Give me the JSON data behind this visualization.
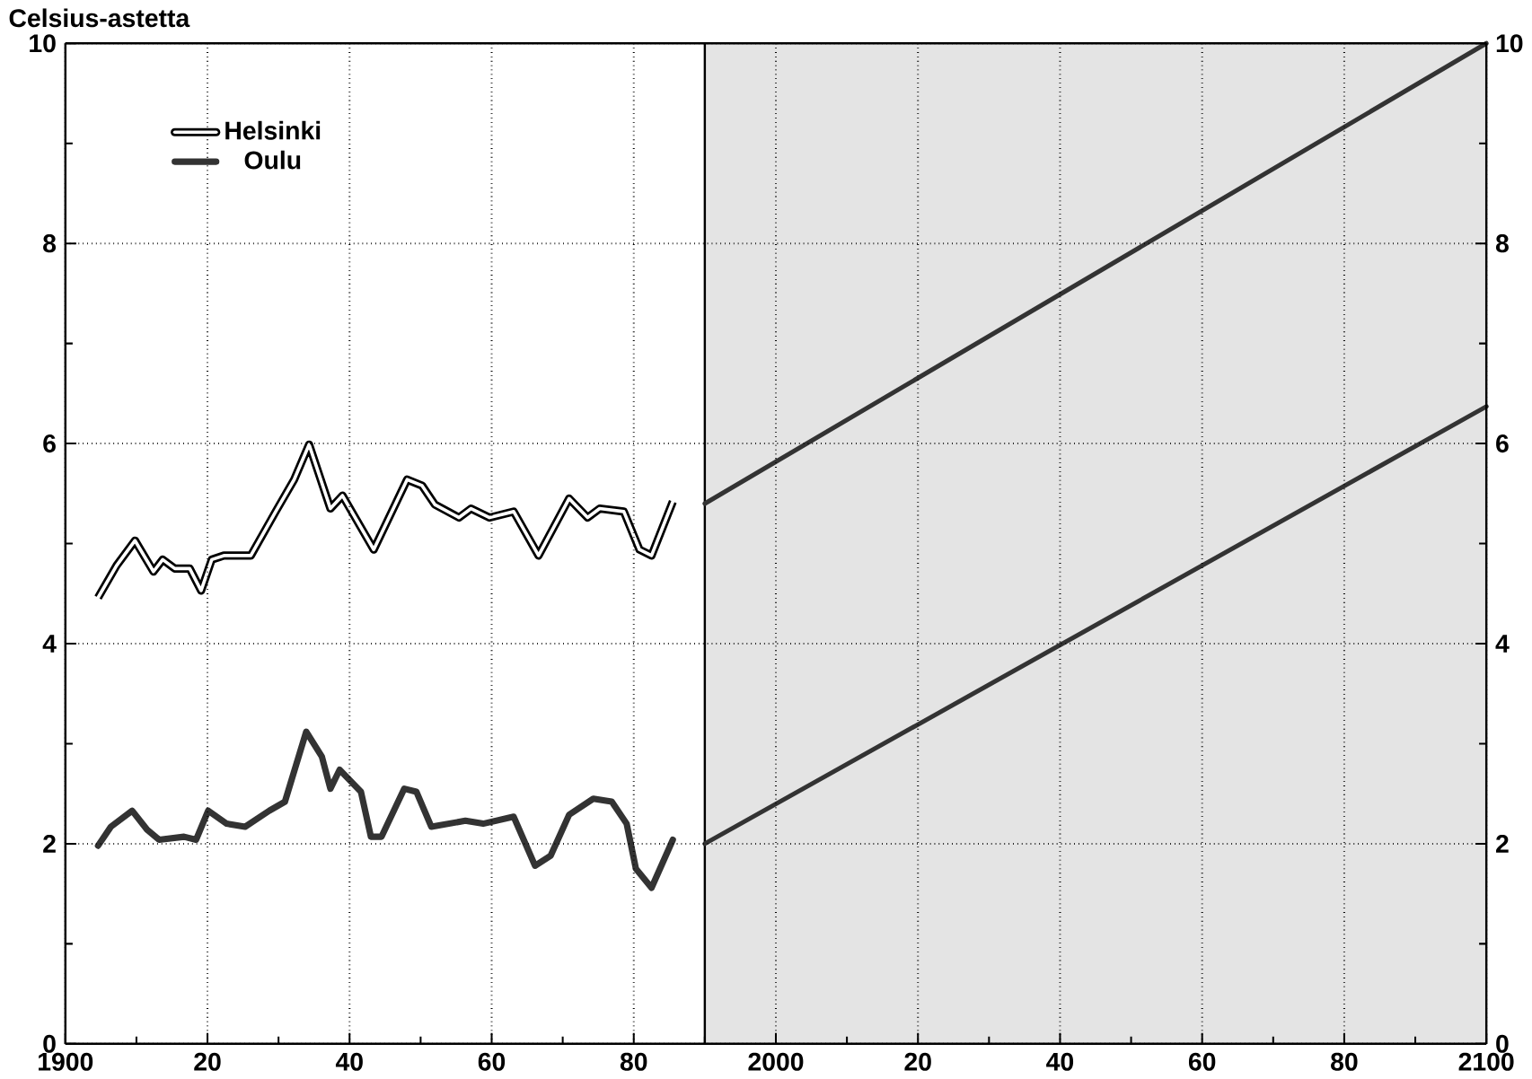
{
  "chart_data": {
    "type": "line",
    "ylabel": "Celsius-astetta",
    "xlim": [
      1900,
      2100
    ],
    "ylim": [
      0,
      10
    ],
    "y2lim": [
      0,
      10
    ],
    "xticks": [
      {
        "value": 1900,
        "label": "1900"
      },
      {
        "value": 1910,
        "label": null
      },
      {
        "value": 1920,
        "label": "20"
      },
      {
        "value": 1930,
        "label": null
      },
      {
        "value": 1940,
        "label": "40"
      },
      {
        "value": 1950,
        "label": null
      },
      {
        "value": 1960,
        "label": "60"
      },
      {
        "value": 1970,
        "label": null
      },
      {
        "value": 1980,
        "label": "80"
      },
      {
        "value": 1990,
        "label": null
      },
      {
        "value": 2000,
        "label": "2000"
      },
      {
        "value": 2010,
        "label": null
      },
      {
        "value": 2020,
        "label": "20"
      },
      {
        "value": 2030,
        "label": null
      },
      {
        "value": 2040,
        "label": "40"
      },
      {
        "value": 2050,
        "label": null
      },
      {
        "value": 2060,
        "label": "60"
      },
      {
        "value": 2070,
        "label": null
      },
      {
        "value": 2080,
        "label": "80"
      },
      {
        "value": 2090,
        "label": null
      },
      {
        "value": 2100,
        "label": "2100"
      }
    ],
    "yticks": [
      0,
      {
        "value": 1,
        "label": null
      },
      2,
      {
        "value": 3,
        "label": null
      },
      4,
      {
        "value": 5,
        "label": null
      },
      6,
      {
        "value": 7,
        "label": null
      },
      8,
      {
        "value": 9,
        "label": null
      },
      10
    ],
    "y2ticks": [
      0,
      {
        "value": 1,
        "label": null
      },
      2,
      {
        "value": 3,
        "label": null
      },
      4,
      {
        "value": 5,
        "label": null
      },
      6,
      {
        "value": 7,
        "label": null
      },
      8,
      {
        "value": 9,
        "label": null
      },
      10
    ],
    "grid": true,
    "legend": "top left",
    "line_style": "solid",
    "marker": "none",
    "ref_lines": [
      {
        "axis": "x",
        "value": 1990,
        "color": "#000000"
      }
    ],
    "bands": [
      {
        "axis": "x",
        "from": 1990,
        "to": 2100,
        "color": "#e4e4e4"
      }
    ],
    "series": [
      {
        "name": "Helsinki",
        "color": "#ffffff",
        "x": [
          1904.6,
          1907.2,
          1909.8,
          1912.4,
          1913.7,
          1915.4,
          1917.5,
          1919.1,
          1920.6,
          1922.3,
          1926.1,
          1929.6,
          1932.2,
          1934.3,
          1937.3,
          1939.0,
          1943.4,
          1948.1,
          1950.2,
          1952.0,
          1955.4,
          1957.1,
          1959.7,
          1963.1,
          1966.6,
          1970.9,
          1973.5,
          1975.2,
          1978.6,
          1980.8,
          1982.5,
          1985.5
        ],
        "values": [
          4.46,
          4.78,
          5.03,
          4.72,
          4.84,
          4.75,
          4.75,
          4.53,
          4.84,
          4.88,
          4.88,
          5.32,
          5.64,
          5.99,
          5.35,
          5.48,
          4.94,
          5.64,
          5.58,
          5.39,
          5.26,
          5.35,
          5.26,
          5.32,
          4.88,
          5.45,
          5.26,
          5.35,
          5.32,
          4.94,
          4.88,
          5.42
        ]
      },
      {
        "name": "Oulu",
        "color": "#333333",
        "x": [
          1904.6,
          1906.4,
          1909.4,
          1911.5,
          1913.2,
          1916.7,
          1918.4,
          1920.1,
          1922.7,
          1925.3,
          1928.7,
          1930.9,
          1933.9,
          1936.1,
          1937.3,
          1938.6,
          1941.6,
          1943.0,
          1944.5,
          1947.7,
          1949.4,
          1951.5,
          1956.3,
          1958.8,
          1963.1,
          1966.1,
          1968.3,
          1970.9,
          1974.3,
          1976.9,
          1979.0,
          1980.3,
          1982.5,
          1985.5
        ],
        "values": [
          1.98,
          2.17,
          2.33,
          2.14,
          2.04,
          2.07,
          2.04,
          2.33,
          2.2,
          2.17,
          2.33,
          2.42,
          3.12,
          2.87,
          2.55,
          2.74,
          2.52,
          2.07,
          2.07,
          2.55,
          2.52,
          2.17,
          2.23,
          2.2,
          2.27,
          1.78,
          1.88,
          2.29,
          2.45,
          2.42,
          2.2,
          1.75,
          1.56,
          2.04
        ]
      },
      {
        "color": "#333333",
        "x": [
          1990,
          2100
        ],
        "values": [
          5.4,
          10.0
        ]
      },
      {
        "color": "#333333",
        "x": [
          1990,
          2100
        ],
        "values": [
          2.0,
          6.37
        ]
      }
    ]
  }
}
